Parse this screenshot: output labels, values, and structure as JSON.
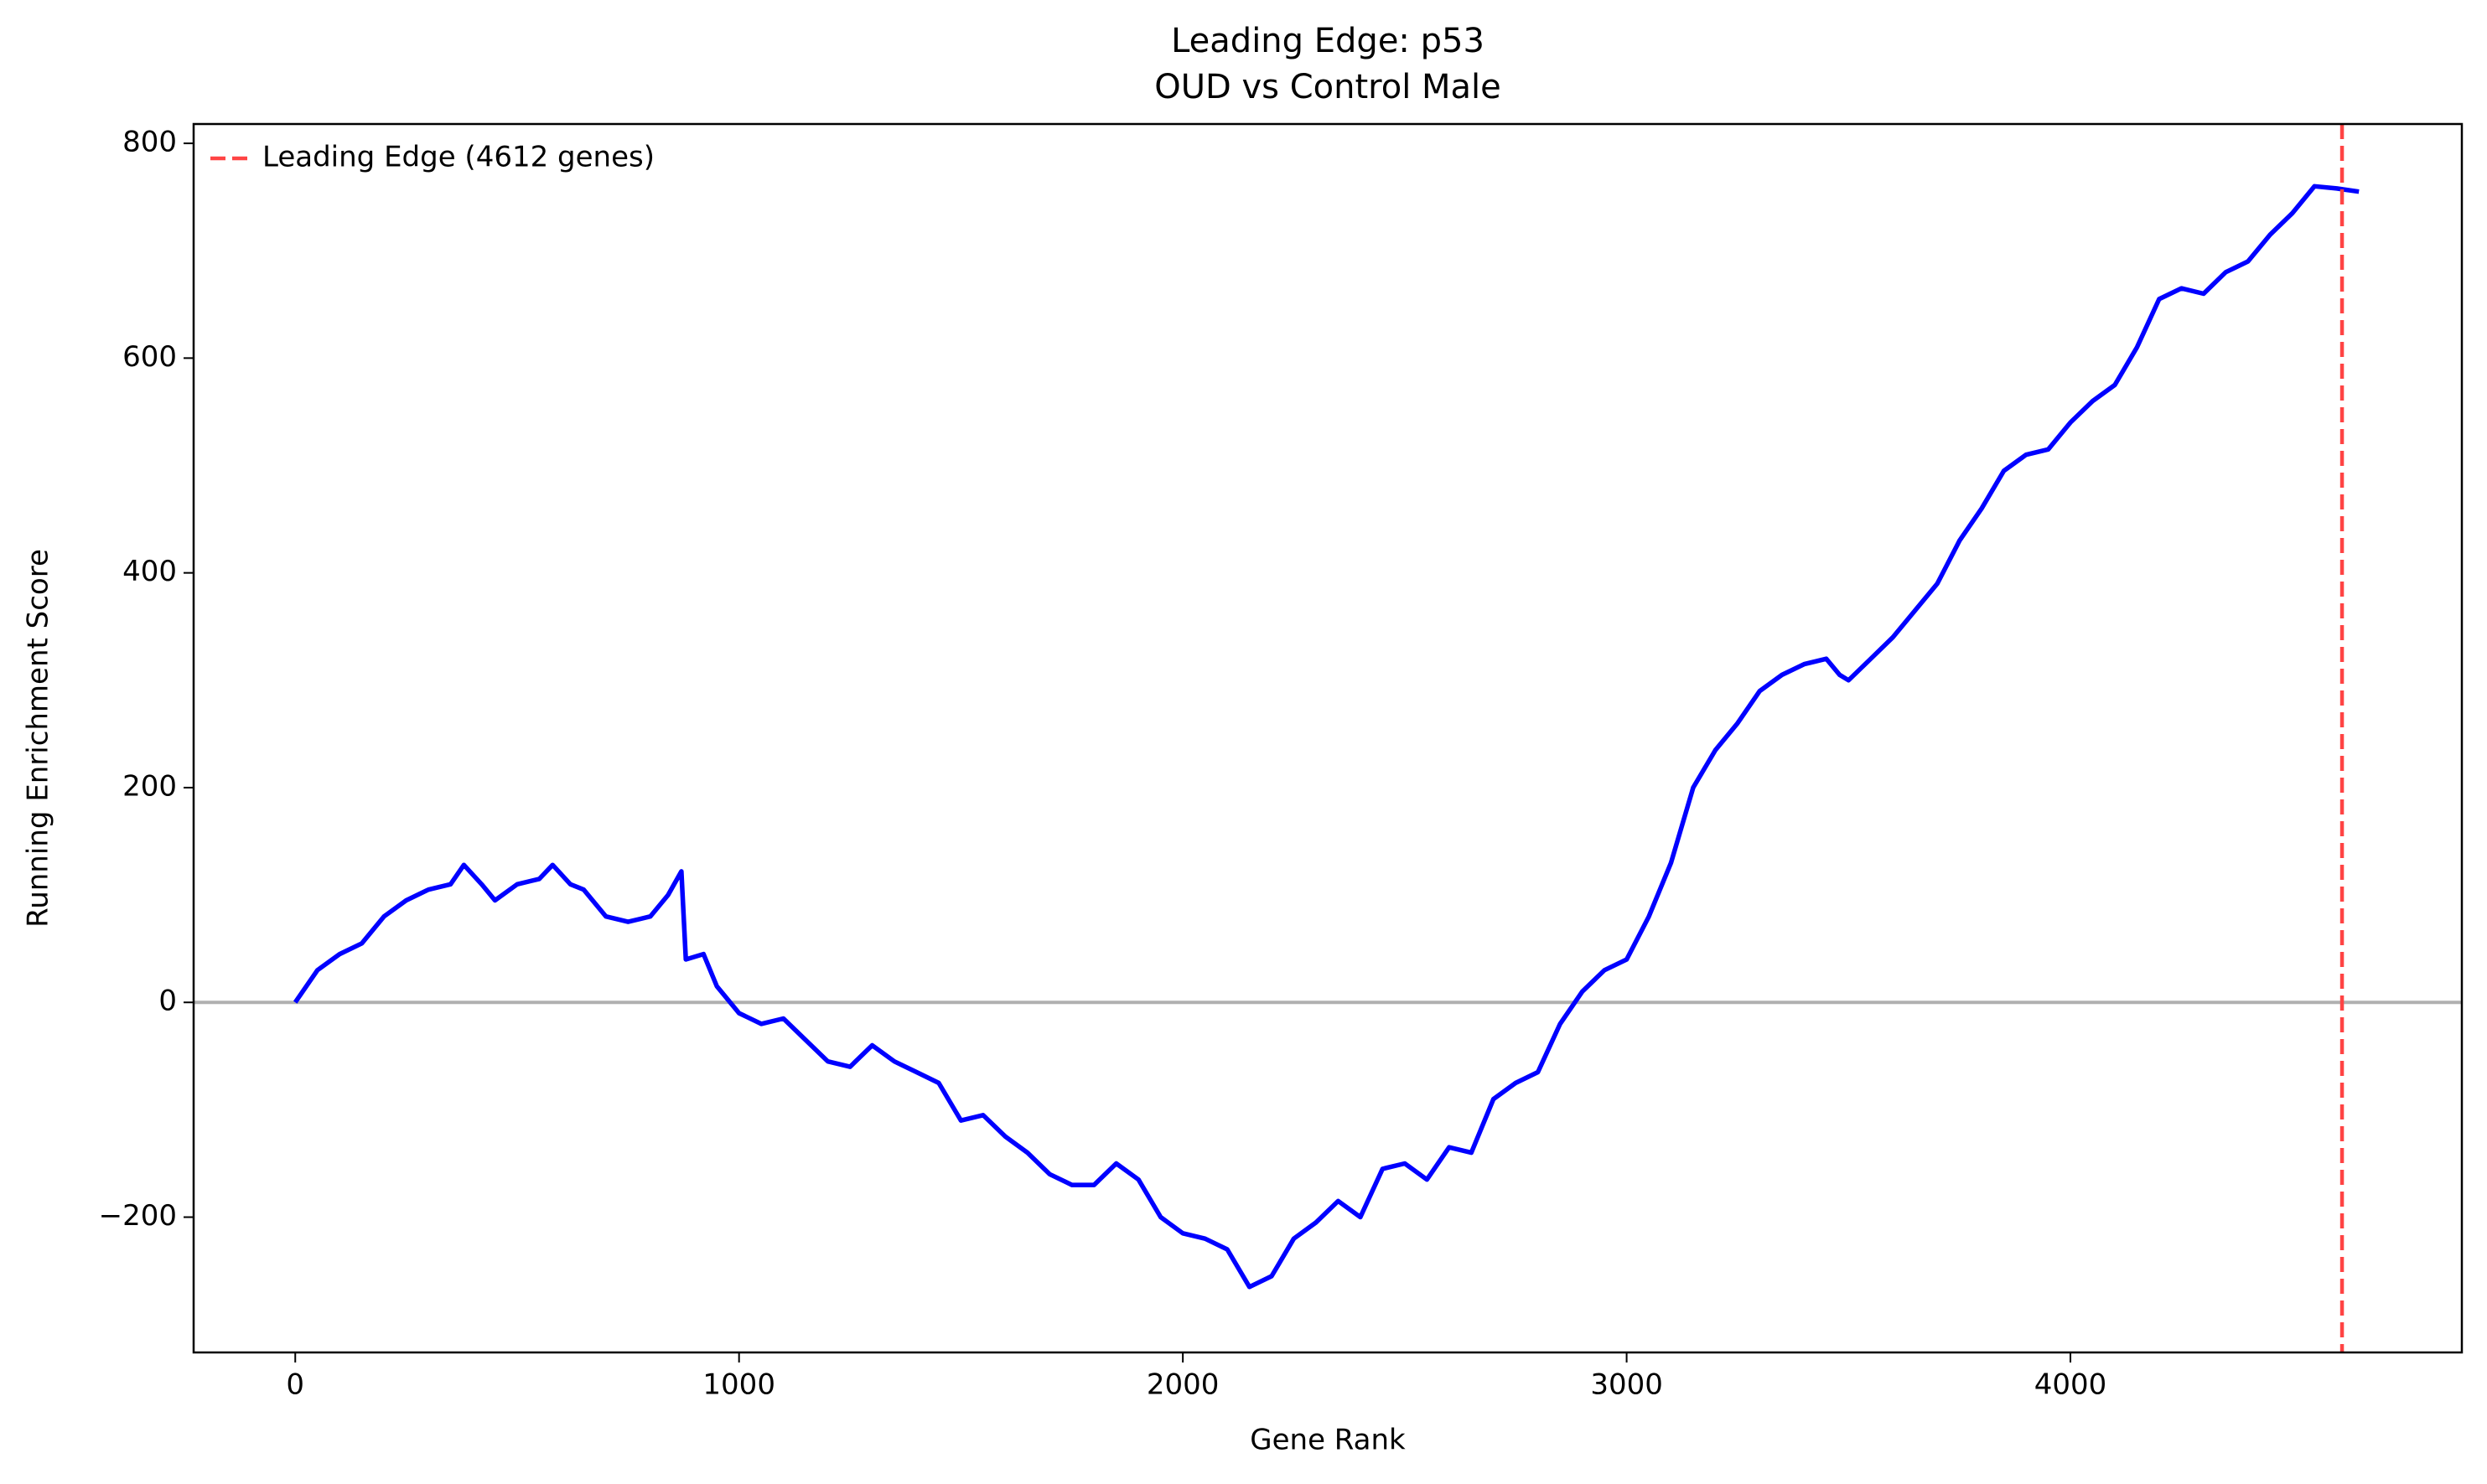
{
  "chart_data": {
    "type": "line",
    "title": "Leading Edge: p53",
    "subtitle": "OUD vs Control Male",
    "x_label": "Gene Rank",
    "y_label": "Running Enrichment Score",
    "x": [
      0,
      50,
      100,
      150,
      200,
      250,
      300,
      350,
      380,
      420,
      450,
      500,
      550,
      580,
      620,
      650,
      700,
      750,
      800,
      840,
      870,
      880,
      920,
      950,
      1000,
      1050,
      1100,
      1150,
      1200,
      1250,
      1300,
      1350,
      1400,
      1450,
      1500,
      1550,
      1600,
      1650,
      1700,
      1750,
      1800,
      1850,
      1900,
      1950,
      2000,
      2050,
      2100,
      2150,
      2200,
      2250,
      2300,
      2350,
      2400,
      2450,
      2500,
      2550,
      2600,
      2650,
      2700,
      2750,
      2800,
      2850,
      2900,
      2950,
      3000,
      3050,
      3100,
      3150,
      3200,
      3250,
      3300,
      3350,
      3400,
      3450,
      3480,
      3500,
      3550,
      3600,
      3650,
      3700,
      3750,
      3800,
      3850,
      3900,
      3950,
      4000,
      4050,
      4100,
      4150,
      4200,
      4250,
      4300,
      4350,
      4400,
      4450,
      4500,
      4550,
      4600,
      4650
    ],
    "series": [
      {
        "name": null,
        "color": "#0000ff",
        "values": [
          0,
          30,
          45,
          55,
          80,
          95,
          105,
          110,
          128,
          110,
          95,
          110,
          115,
          128,
          110,
          105,
          80,
          75,
          80,
          100,
          122,
          40,
          45,
          15,
          -10,
          -20,
          -15,
          -35,
          -55,
          -60,
          -40,
          -55,
          -65,
          -75,
          -110,
          -105,
          -125,
          -140,
          -160,
          -170,
          -170,
          -150,
          -165,
          -200,
          -215,
          -220,
          -230,
          -265,
          -255,
          -220,
          -205,
          -185,
          -200,
          -155,
          -150,
          -165,
          -135,
          -140,
          -90,
          -75,
          -65,
          -20,
          10,
          30,
          40,
          80,
          130,
          200,
          235,
          260,
          290,
          305,
          315,
          320,
          305,
          300,
          320,
          340,
          365,
          390,
          430,
          460,
          495,
          510,
          515,
          540,
          560,
          575,
          610,
          655,
          665,
          660,
          680,
          690,
          715,
          735,
          760,
          758,
          755
        ]
      }
    ],
    "hline": 0,
    "hline_color": "#b0b0b0",
    "vline": 4612,
    "vline_color": "#ff4444",
    "vline_name": "Leading Edge (4612 genes)",
    "legend": "upper left",
    "xlim": [
      -229,
      4882
    ],
    "ylim": [
      -326,
      818
    ],
    "xticks": [
      0,
      1000,
      2000,
      3000,
      4000
    ],
    "yticks": [
      {
        "value": -200,
        "label": "−200"
      },
      0,
      200,
      400,
      600,
      800
    ]
  }
}
